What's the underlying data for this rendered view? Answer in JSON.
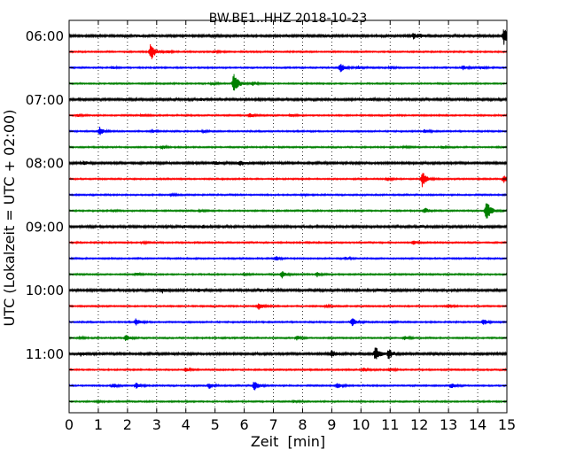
{
  "chart_data": {
    "type": "line",
    "title": "BW.BE1..HHZ 2018-10-23",
    "xlabel": "Zeit  [min]",
    "ylabel": "UTC (Lokalzeit = UTC + 02:00)",
    "xlim": [
      0,
      15
    ],
    "x_ticks": [
      "0",
      "1",
      "2",
      "3",
      "4",
      "5",
      "6",
      "7",
      "8",
      "9",
      "10",
      "11",
      "12",
      "13",
      "14",
      "15"
    ],
    "y_tick_labels": [
      "06:00",
      "07:00",
      "08:00",
      "09:00",
      "10:00",
      "11:00"
    ],
    "grid": "vertical dotted at each minute",
    "trace_color_cycle": [
      "#000000",
      "#ff0000",
      "#0000ff",
      "#008000"
    ],
    "traces": [
      {
        "start": "05:45",
        "events": [
          [
            2.3,
            0.12
          ],
          [
            8.7,
            0.12
          ],
          [
            12.0,
            0.12
          ],
          [
            11.8,
            0.35
          ],
          [
            14.9,
            1.0
          ]
        ]
      },
      {
        "start": "06:00",
        "events": [
          [
            2.8,
            1.15
          ],
          [
            3.4,
            0.15
          ],
          [
            5.0,
            0.12
          ]
        ]
      },
      {
        "start": "06:15",
        "events": [
          [
            1.5,
            0.15
          ],
          [
            9.3,
            0.55
          ],
          [
            9.9,
            0.2
          ],
          [
            11.0,
            0.2
          ],
          [
            13.5,
            0.25
          ],
          [
            14.1,
            0.2
          ]
        ]
      },
      {
        "start": "06:30",
        "events": [
          [
            5.65,
            1.5
          ],
          [
            6.3,
            0.25
          ],
          [
            4.9,
            0.15
          ]
        ]
      },
      {
        "start": "06:45",
        "events": [
          [
            4.5,
            0.12
          ],
          [
            10.3,
            0.12
          ]
        ]
      },
      {
        "start": "07:00",
        "events": [
          [
            0.3,
            0.15
          ],
          [
            2.5,
            0.15
          ],
          [
            6.2,
            0.25
          ],
          [
            7.6,
            0.15
          ]
        ]
      },
      {
        "start": "07:15",
        "events": [
          [
            1.05,
            0.5
          ],
          [
            2.85,
            0.2
          ],
          [
            4.6,
            0.12
          ],
          [
            12.2,
            0.2
          ]
        ]
      },
      {
        "start": "07:30",
        "events": [
          [
            3.2,
            0.2
          ],
          [
            11.5,
            0.12
          ],
          [
            12.8,
            0.12
          ]
        ]
      },
      {
        "start": "07:45",
        "events": [
          [
            0.5,
            0.2
          ],
          [
            5.0,
            0.25
          ],
          [
            5.85,
            0.35
          ]
        ]
      },
      {
        "start": "08:00",
        "events": [
          [
            12.1,
            1.0
          ],
          [
            14.9,
            0.45
          ],
          [
            10.9,
            0.2
          ]
        ]
      },
      {
        "start": "08:15",
        "events": [
          [
            3.5,
            0.12
          ],
          [
            8.0,
            0.12
          ]
        ]
      },
      {
        "start": "08:30",
        "events": [
          [
            12.2,
            0.35
          ],
          [
            14.3,
            1.6
          ],
          [
            1.5,
            0.15
          ],
          [
            4.5,
            0.15
          ]
        ]
      },
      {
        "start": "08:45",
        "events": [
          [
            3.9,
            0.15
          ],
          [
            4.6,
            0.15
          ],
          [
            12.0,
            0.15
          ]
        ]
      },
      {
        "start": "09:00",
        "events": [
          [
            11.8,
            0.2
          ],
          [
            2.5,
            0.12
          ]
        ]
      },
      {
        "start": "09:15",
        "events": [
          [
            7.1,
            0.25
          ],
          [
            9.5,
            0.15
          ]
        ]
      },
      {
        "start": "09:30",
        "events": [
          [
            7.3,
            0.45
          ],
          [
            8.5,
            0.3
          ],
          [
            2.3,
            0.15
          ],
          [
            6.0,
            0.15
          ]
        ]
      },
      {
        "start": "09:45",
        "events": [
          [
            3.2,
            0.3
          ],
          [
            4.4,
            0.2
          ],
          [
            6.6,
            0.15
          ],
          [
            10.6,
            0.15
          ]
        ]
      },
      {
        "start": "10:00",
        "events": [
          [
            6.5,
            0.4
          ],
          [
            8.8,
            0.15
          ],
          [
            13.0,
            0.15
          ]
        ]
      },
      {
        "start": "10:15",
        "events": [
          [
            2.3,
            0.45
          ],
          [
            9.7,
            0.55
          ],
          [
            14.2,
            0.4
          ],
          [
            11.0,
            0.12
          ]
        ]
      },
      {
        "start": "10:30",
        "events": [
          [
            1.95,
            0.4
          ],
          [
            7.8,
            0.25
          ],
          [
            11.5,
            0.25
          ],
          [
            0.4,
            0.12
          ]
        ]
      },
      {
        "start": "10:45",
        "events": [
          [
            9.0,
            0.45
          ],
          [
            10.5,
            0.9
          ],
          [
            10.95,
            0.6
          ],
          [
            0.4,
            0.2
          ]
        ]
      },
      {
        "start": "11:00",
        "events": [
          [
            4.0,
            0.2
          ],
          [
            10.1,
            0.2
          ],
          [
            11.0,
            0.2
          ]
        ]
      },
      {
        "start": "11:15",
        "events": [
          [
            1.5,
            0.3
          ],
          [
            2.3,
            0.35
          ],
          [
            4.8,
            0.35
          ],
          [
            6.35,
            0.7
          ],
          [
            9.2,
            0.35
          ],
          [
            13.1,
            0.3
          ]
        ]
      },
      {
        "start": "11:30",
        "events": [
          [
            1.0,
            0.12
          ],
          [
            7.7,
            0.12
          ]
        ]
      }
    ]
  }
}
